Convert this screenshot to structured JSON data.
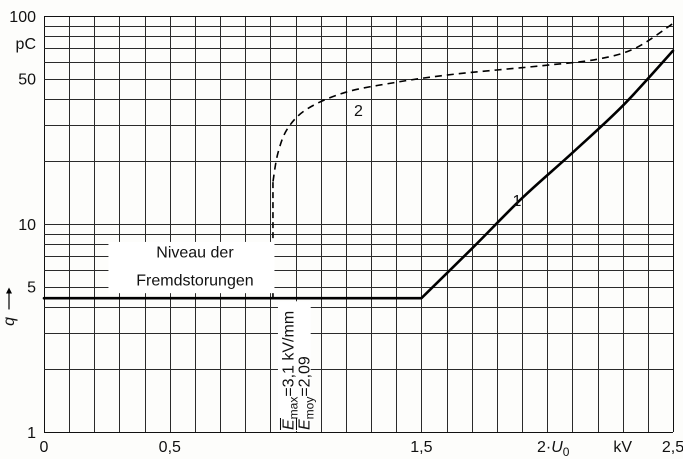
{
  "chart_data": {
    "type": "line",
    "xlim": [
      0,
      2.5
    ],
    "ylim": [
      1,
      100
    ],
    "y_scale": "log",
    "grid": true,
    "x_major_ticks": [
      {
        "value": 0,
        "label": "0"
      },
      {
        "value": 0.5,
        "label": "0,5"
      },
      {
        "value": 1.5,
        "label": "1,5"
      },
      {
        "value": 2.5,
        "label": "2,5"
      }
    ],
    "x_extra_label": {
      "value": 2.0,
      "prefix": "2·",
      "var": "U",
      "sub": "0"
    },
    "x_unit": "kV",
    "y_major_ticks": [
      {
        "value": 1,
        "label": "1"
      },
      {
        "value": 5,
        "label": "5"
      },
      {
        "value": 10,
        "label": "10"
      },
      {
        "value": 50,
        "label": "50"
      },
      {
        "value": 100,
        "label": "100"
      }
    ],
    "y_unit": "pC",
    "ylabel": "q",
    "series": [
      {
        "name": "1",
        "style": "solid",
        "x": [
          0,
          1.5,
          1.7,
          1.9,
          2.1,
          2.3,
          2.5
        ],
        "y": [
          4.4,
          4.4,
          7.6,
          13.3,
          22,
          37,
          68
        ]
      },
      {
        "name": "2",
        "style": "dashed",
        "x": [
          0.91,
          0.91,
          0.93,
          0.97,
          1.05,
          1.2,
          1.4,
          1.6,
          1.8,
          2.0,
          2.2,
          2.35,
          2.5
        ],
        "y": [
          4.4,
          16,
          22,
          29,
          36,
          43,
          48,
          52,
          55,
          58,
          62,
          70,
          92
        ]
      }
    ],
    "annotations": {
      "noise_level": [
        "Niveau der",
        "Fremdstorungen"
      ],
      "emax": {
        "var": "E",
        "sub": "max",
        "value": "=3,1"
      },
      "emoy": {
        "var": "E",
        "sub": "moy",
        "value": "=2,09"
      },
      "unit": "kV/mm"
    }
  }
}
